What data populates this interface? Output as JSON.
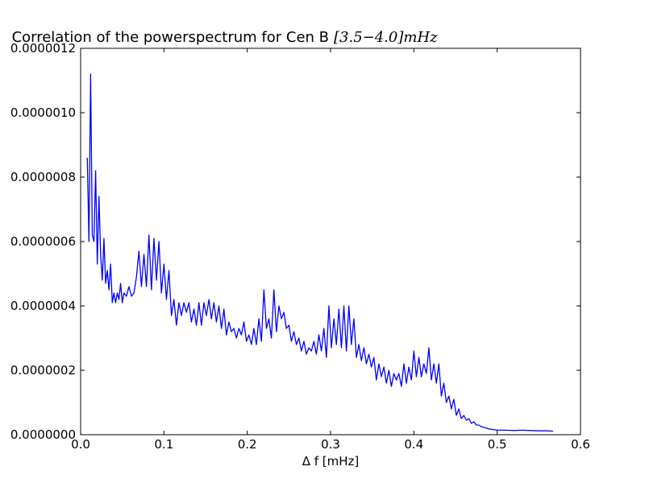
{
  "chart_data": {
    "type": "line",
    "title": "Correlation of the powerspectrum for Cen B",
    "title_math": "[3.5−4.0]mHz",
    "xlabel": "Δ f [mHz]",
    "ylabel": "",
    "xlim": [
      0.0,
      0.6
    ],
    "ylim": [
      0.0,
      1.2e-06
    ],
    "x_ticks": [
      0.0,
      0.1,
      0.2,
      0.3,
      0.4,
      0.5,
      0.6
    ],
    "x_tick_labels": [
      "0.0",
      "0.1",
      "0.2",
      "0.3",
      "0.4",
      "0.5",
      "0.6"
    ],
    "y_ticks": [
      0.0,
      2e-07,
      4e-07,
      6e-07,
      8e-07,
      1e-06,
      1.2e-06
    ],
    "y_tick_labels": [
      "0.0000000",
      "0.0000002",
      "0.0000004",
      "0.0000006",
      "0.0000008",
      "0.0000010",
      "0.0000012"
    ],
    "grid": false,
    "line_color": "#0000ff",
    "series": [
      {
        "x": [
          0.008,
          0.01,
          0.012,
          0.014,
          0.016,
          0.018,
          0.02,
          0.022,
          0.024,
          0.026,
          0.028,
          0.03,
          0.032,
          0.034,
          0.036,
          0.038,
          0.04,
          0.042,
          0.044,
          0.046,
          0.048,
          0.05,
          0.052,
          0.055,
          0.058,
          0.061,
          0.064,
          0.067,
          0.07,
          0.073,
          0.076,
          0.079,
          0.082,
          0.085,
          0.088,
          0.091,
          0.094,
          0.097,
          0.1,
          0.103,
          0.106,
          0.109,
          0.112,
          0.115,
          0.118,
          0.121,
          0.124,
          0.127,
          0.13,
          0.133,
          0.136,
          0.139,
          0.142,
          0.145,
          0.148,
          0.151,
          0.154,
          0.157,
          0.16,
          0.163,
          0.166,
          0.169,
          0.172,
          0.175,
          0.178,
          0.181,
          0.184,
          0.187,
          0.19,
          0.193,
          0.196,
          0.199,
          0.202,
          0.205,
          0.208,
          0.211,
          0.214,
          0.217,
          0.22,
          0.223,
          0.226,
          0.229,
          0.232,
          0.235,
          0.238,
          0.241,
          0.244,
          0.247,
          0.25,
          0.253,
          0.256,
          0.259,
          0.262,
          0.265,
          0.268,
          0.271,
          0.274,
          0.277,
          0.28,
          0.283,
          0.286,
          0.289,
          0.292,
          0.295,
          0.298,
          0.301,
          0.304,
          0.307,
          0.31,
          0.313,
          0.316,
          0.319,
          0.322,
          0.325,
          0.328,
          0.331,
          0.334,
          0.337,
          0.34,
          0.343,
          0.346,
          0.349,
          0.352,
          0.355,
          0.358,
          0.361,
          0.364,
          0.367,
          0.37,
          0.373,
          0.376,
          0.379,
          0.382,
          0.385,
          0.388,
          0.391,
          0.394,
          0.397,
          0.4,
          0.403,
          0.406,
          0.409,
          0.412,
          0.415,
          0.418,
          0.421,
          0.424,
          0.427,
          0.43,
          0.433,
          0.436,
          0.439,
          0.442,
          0.445,
          0.448,
          0.451,
          0.454,
          0.457,
          0.46,
          0.463,
          0.466,
          0.469,
          0.472,
          0.475,
          0.478,
          0.481,
          0.485,
          0.49,
          0.495,
          0.5,
          0.51,
          0.52,
          0.53,
          0.54,
          0.55,
          0.56,
          0.567
        ],
        "y": [
          8.6e-07,
          6e-07,
          1.12e-06,
          6.2e-07,
          6e-07,
          8.2e-07,
          5.3e-07,
          7.4e-07,
          5.6e-07,
          4.8e-07,
          6.1e-07,
          4.7e-07,
          5.1e-07,
          4.5e-07,
          5.3e-07,
          4.1e-07,
          4.4e-07,
          4.1e-07,
          4.4e-07,
          4.2e-07,
          4.7e-07,
          4.1e-07,
          4.4e-07,
          4.3e-07,
          4.6e-07,
          4.3e-07,
          4.4e-07,
          4.9e-07,
          5.7e-07,
          4.6e-07,
          5.6e-07,
          4.6e-07,
          6.2e-07,
          4.5e-07,
          6.1e-07,
          4.8e-07,
          6e-07,
          4.4e-07,
          5.3e-07,
          4.2e-07,
          5.1e-07,
          3.7e-07,
          4.2e-07,
          3.4e-07,
          4.1e-07,
          3.7e-07,
          4.1e-07,
          3.8e-07,
          4.1e-07,
          3.5e-07,
          3.9e-07,
          3.4e-07,
          4.1e-07,
          3.4e-07,
          4.1e-07,
          3.7e-07,
          4.2e-07,
          3.6e-07,
          4.1e-07,
          3.5e-07,
          4e-07,
          3.3e-07,
          3.9e-07,
          3.1e-07,
          3.5e-07,
          3.2e-07,
          3.3e-07,
          3e-07,
          3.3e-07,
          3.1e-07,
          3.5e-07,
          2.9e-07,
          3.1e-07,
          2.8e-07,
          3.3e-07,
          2.8e-07,
          3.6e-07,
          2.9e-07,
          4.5e-07,
          3.3e-07,
          3.6e-07,
          3e-07,
          4.5e-07,
          3.2e-07,
          4e-07,
          3.6e-07,
          3.8e-07,
          3.3e-07,
          3.4e-07,
          2.9e-07,
          3.2e-07,
          2.8e-07,
          3e-07,
          2.6e-07,
          2.9e-07,
          2.5e-07,
          2.7e-07,
          2.6e-07,
          2.9e-07,
          2.5e-07,
          3.1e-07,
          2.6e-07,
          3.3e-07,
          2.4e-07,
          4e-07,
          2.7e-07,
          3.6e-07,
          2.8e-07,
          3.9e-07,
          2.7e-07,
          4e-07,
          2.6e-07,
          4e-07,
          2.8e-07,
          3.6e-07,
          2.4e-07,
          2.8e-07,
          2.3e-07,
          2.7e-07,
          2.2e-07,
          2.5e-07,
          2.1e-07,
          2.4e-07,
          1.7e-07,
          2.2e-07,
          1.8e-07,
          2.1e-07,
          1.6e-07,
          2e-07,
          1.5e-07,
          1.9e-07,
          1.7e-07,
          1.9e-07,
          1.5e-07,
          2.2e-07,
          1.6e-07,
          2.1e-07,
          1.7e-07,
          2.6e-07,
          1.8e-07,
          2.4e-07,
          1.8e-07,
          2.2e-07,
          1.9e-07,
          2.7e-07,
          1.7e-07,
          2.2e-07,
          1.6e-07,
          2.2e-07,
          1.2e-07,
          1.6e-07,
          1e-07,
          1.2e-07,
          8e-08,
          1.1e-07,
          6e-08,
          8e-08,
          5e-08,
          6e-08,
          4.5e-08,
          5e-08,
          3.5e-08,
          4e-08,
          3e-08,
          3e-08,
          2.5e-08,
          2.2e-08,
          1.8e-08,
          1.6e-08,
          1.4e-08,
          1.4e-08,
          1.3e-08,
          1.4e-08,
          1.3e-08,
          1.2e-08,
          1.2e-08,
          1.1e-08
        ]
      }
    ]
  }
}
